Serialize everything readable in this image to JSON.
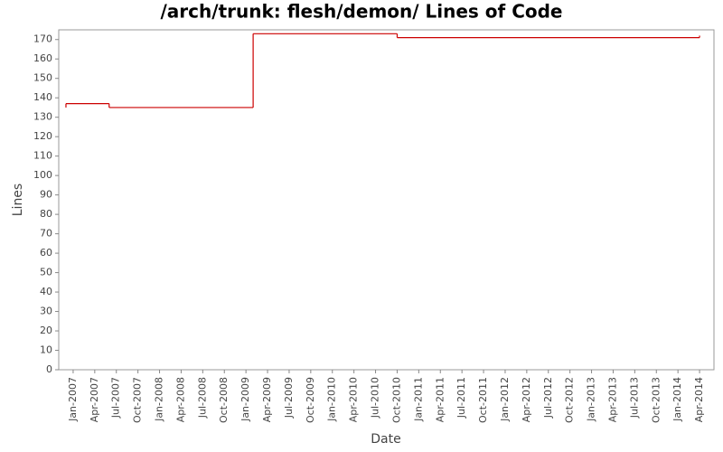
{
  "chart_data": {
    "type": "line",
    "step": "post",
    "title": "/arch/trunk: flesh/demon/ Lines of Code",
    "x_label": "Date",
    "y_label": "Lines",
    "x": [
      "2006-12",
      "2006-12",
      "2007-06",
      "2009-02",
      "2010-10",
      "2014-04",
      "2014-04"
    ],
    "series": [
      {
        "color": "#cc0000",
        "values": [
          135,
          137,
          135,
          173,
          171,
          171,
          172
        ]
      }
    ],
    "xlim": [
      "2006-11",
      "2014-06"
    ],
    "xticks": [
      {
        "value": "2007-01",
        "label": "Jan-2007"
      },
      {
        "value": "2007-04",
        "label": "Apr-2007"
      },
      {
        "value": "2007-07",
        "label": "Jul-2007"
      },
      {
        "value": "2007-10",
        "label": "Oct-2007"
      },
      {
        "value": "2008-01",
        "label": "Jan-2008"
      },
      {
        "value": "2008-04",
        "label": "Apr-2008"
      },
      {
        "value": "2008-07",
        "label": "Jul-2008"
      },
      {
        "value": "2008-10",
        "label": "Oct-2008"
      },
      {
        "value": "2009-01",
        "label": "Jan-2009"
      },
      {
        "value": "2009-04",
        "label": "Apr-2009"
      },
      {
        "value": "2009-07",
        "label": "Jul-2009"
      },
      {
        "value": "2009-10",
        "label": "Oct-2009"
      },
      {
        "value": "2010-01",
        "label": "Jan-2010"
      },
      {
        "value": "2010-04",
        "label": "Apr-2010"
      },
      {
        "value": "2010-07",
        "label": "Jul-2010"
      },
      {
        "value": "2010-10",
        "label": "Oct-2010"
      },
      {
        "value": "2011-01",
        "label": "Jan-2011"
      },
      {
        "value": "2011-04",
        "label": "Apr-2011"
      },
      {
        "value": "2011-07",
        "label": "Jul-2011"
      },
      {
        "value": "2011-10",
        "label": "Oct-2011"
      },
      {
        "value": "2012-01",
        "label": "Jan-2012"
      },
      {
        "value": "2012-04",
        "label": "Apr-2012"
      },
      {
        "value": "2012-07",
        "label": "Jul-2012"
      },
      {
        "value": "2012-10",
        "label": "Oct-2012"
      },
      {
        "value": "2013-01",
        "label": "Jan-2013"
      },
      {
        "value": "2013-04",
        "label": "Apr-2013"
      },
      {
        "value": "2013-07",
        "label": "Jul-2013"
      },
      {
        "value": "2013-10",
        "label": "Oct-2013"
      },
      {
        "value": "2014-01",
        "label": "Jan-2014"
      },
      {
        "value": "2014-04",
        "label": "Apr-2014"
      }
    ],
    "ylim": [
      0,
      175
    ],
    "yticks": [
      0,
      10,
      20,
      30,
      40,
      50,
      60,
      70,
      80,
      90,
      100,
      110,
      120,
      130,
      140,
      150,
      160,
      170
    ],
    "grid": false
  }
}
